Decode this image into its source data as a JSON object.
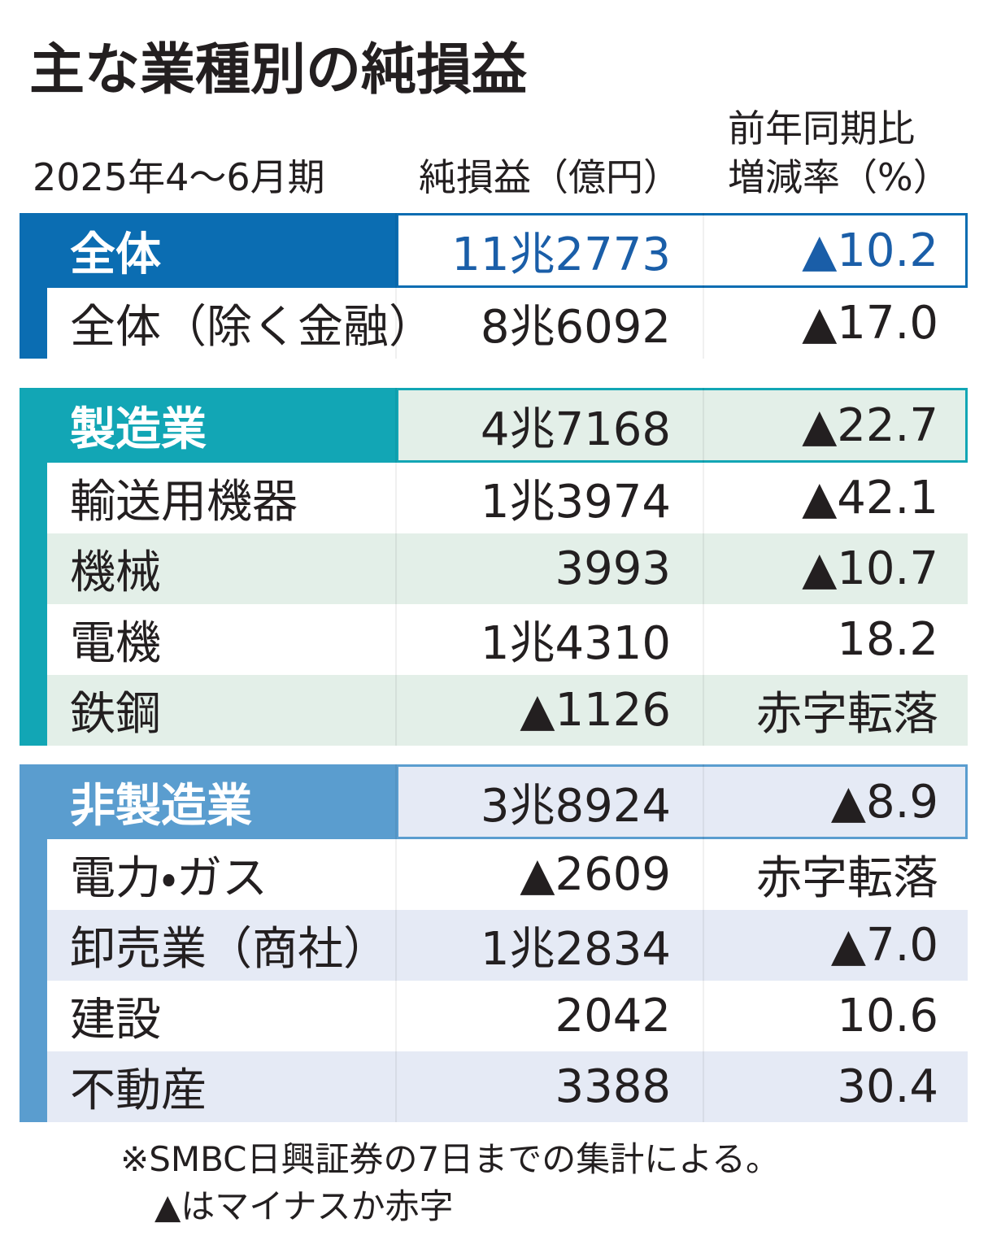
{
  "header": {
    "title": "主な業種別の純損益",
    "period": "2025年4〜6月期",
    "col_value": "純損益（億円）",
    "col_change": [
      "前年同期比",
      "増減率（%）"
    ]
  },
  "sections": [
    {
      "rows": [
        [
          "全体",
          "11兆2773",
          "▲10.2"
        ],
        [
          "全体（除く金融）",
          "8兆6092",
          "▲17.0"
        ]
      ]
    },
    {
      "rows": [
        [
          "製造業",
          "4兆7168",
          "▲22.7"
        ],
        [
          "輸送用機器",
          "1兆3974",
          "▲42.1"
        ],
        [
          "機械",
          "3993",
          "▲10.7"
        ],
        [
          "電機",
          "1兆4310",
          "18.2"
        ],
        [
          "鉄鋼",
          "▲1126",
          "赤字転落"
        ]
      ]
    },
    {
      "rows": [
        [
          "非製造業",
          "3兆8924",
          "▲8.9"
        ],
        [
          "電力・ガス",
          "▲2609",
          "赤字転落"
        ],
        [
          "卸売業（商社）",
          "1兆2834",
          "▲7.0"
        ],
        [
          "建設",
          "2042",
          "10.6"
        ],
        [
          "不動産",
          "3388",
          "30.4"
        ]
      ]
    }
  ],
  "footnote": [
    "※SMBC日興証券の7日までの集計による。",
    "▲はマイナスか赤字"
  ]
}
